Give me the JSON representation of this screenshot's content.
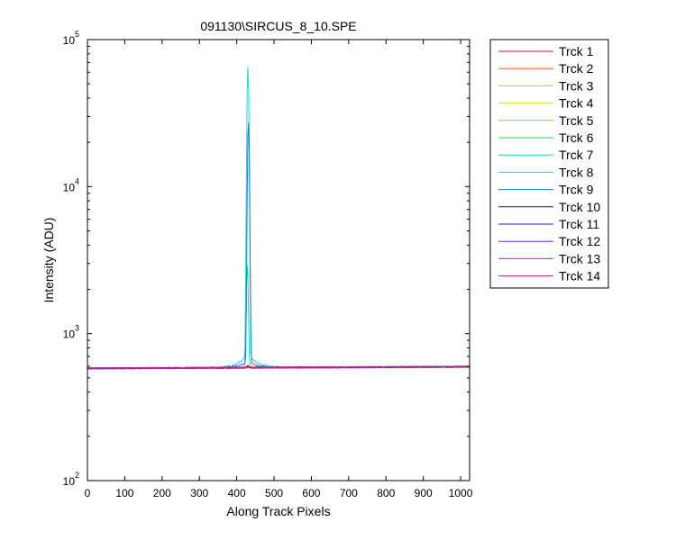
{
  "chart_data": {
    "type": "line",
    "title": "091130\\SIRCUS_8_10.SPE",
    "xlabel": "Along Track Pixels",
    "ylabel": "Intensity (ADU)",
    "xlim": [
      0,
      1024
    ],
    "ylim": [
      100,
      100000
    ],
    "y_scale": "log",
    "grid": false,
    "legend_position": "outside-right-top",
    "x_ticks": [
      0,
      100,
      200,
      300,
      400,
      500,
      600,
      700,
      800,
      900,
      1000
    ],
    "x_tick_labels": [
      "0",
      "100",
      "200",
      "300",
      "400",
      "500",
      "600",
      "700",
      "800",
      "900",
      "1000"
    ],
    "y_ticks": [
      {
        "value": 100,
        "base": "10",
        "exp": "2"
      },
      {
        "value": 1000,
        "base": "10",
        "exp": "3"
      },
      {
        "value": 10000,
        "base": "10",
        "exp": "4"
      },
      {
        "value": 100000,
        "base": "10",
        "exp": "5"
      }
    ],
    "baseline": {
      "x_start": 0,
      "y_start": 580,
      "x_end": 1024,
      "y_end": 595
    },
    "peak_center_x": 430,
    "series": [
      {
        "name": "Trck 1",
        "color": "#cc1a33",
        "peak": 590
      },
      {
        "name": "Trck 2",
        "color": "#e0661a",
        "peak": 590
      },
      {
        "name": "Trck 3",
        "color": "#e6c21a",
        "peak": 590
      },
      {
        "name": "Trck 4",
        "color": "#d6e01a",
        "peak": 590
      },
      {
        "name": "Trck 5",
        "color": "#8cd633",
        "peak": 590
      },
      {
        "name": "Trck 6",
        "color": "#33cc4d",
        "peak": 600
      },
      {
        "name": "Trck 7",
        "color": "#1ad699",
        "peak": 3000
      },
      {
        "name": "Trck 8",
        "color": "#1ad6e0",
        "peak": 65000
      },
      {
        "name": "Trck 9",
        "color": "#1a80cc",
        "peak": 28000
      },
      {
        "name": "Trck 10",
        "color": "#0d1a66",
        "peak": 600
      },
      {
        "name": "Trck 11",
        "color": "#2b1acc",
        "peak": 590
      },
      {
        "name": "Trck 12",
        "color": "#8c1acc",
        "peak": 590
      },
      {
        "name": "Trck 13",
        "color": "#cc1acc",
        "peak": 590
      },
      {
        "name": "Trck 14",
        "color": "#d61a73",
        "peak": 590
      }
    ]
  }
}
